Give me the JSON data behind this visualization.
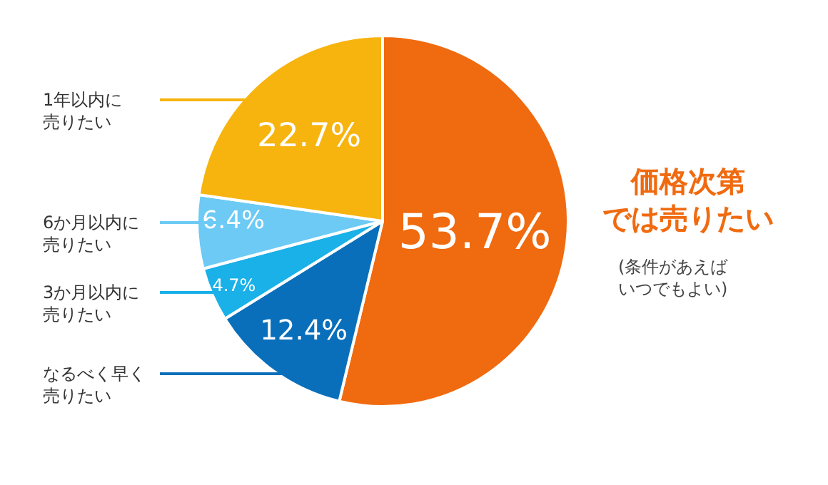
{
  "chart_data": {
    "type": "pie",
    "categories": [
      "価格次第では売りたい",
      "なるべく早く売りたい",
      "3か月以内に売りたい",
      "6か月以内に売りたい",
      "1年以内に売りたい"
    ],
    "values": [
      53.7,
      12.4,
      4.7,
      6.4,
      22.7
    ],
    "value_labels": [
      "53.7%",
      "12.4%",
      "4.7%",
      "6.4%",
      "22.7%"
    ],
    "colors": [
      "#f06a0f",
      "#0a6fba",
      "#1ab0e8",
      "#6ccaf5",
      "#f7b40e"
    ],
    "annotations": [
      "(条件があえばいつでもよい)"
    ],
    "legend": false
  }
}
